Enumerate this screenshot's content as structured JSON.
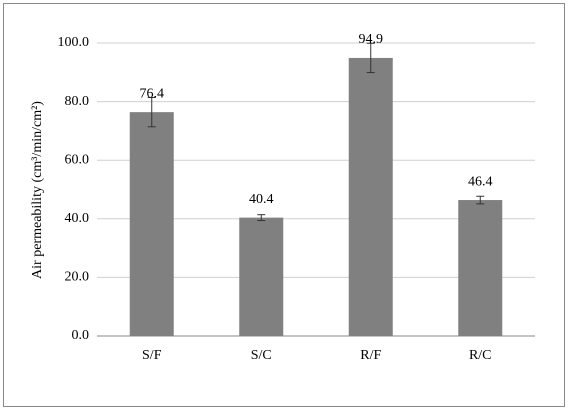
{
  "chart_data": {
    "type": "bar",
    "y_label": "Air permeability (cm³/min/cm²)",
    "categories": [
      "S/F",
      "S/C",
      "R/F",
      "R/C"
    ],
    "values": [
      76.4,
      40.4,
      94.9,
      46.4
    ],
    "errors": [
      5,
      1,
      5,
      1.3
    ],
    "color": "#808080",
    "ylim": [
      0,
      100
    ],
    "yticks": [
      {
        "value": 0,
        "label": "0.0"
      },
      {
        "value": 20,
        "label": "20.0"
      },
      {
        "value": 40,
        "label": "40.0"
      },
      {
        "value": 60,
        "label": "60.0"
      },
      {
        "value": 80,
        "label": "80.0"
      },
      {
        "value": 100,
        "label": "100.0"
      }
    ],
    "grid": true
  }
}
